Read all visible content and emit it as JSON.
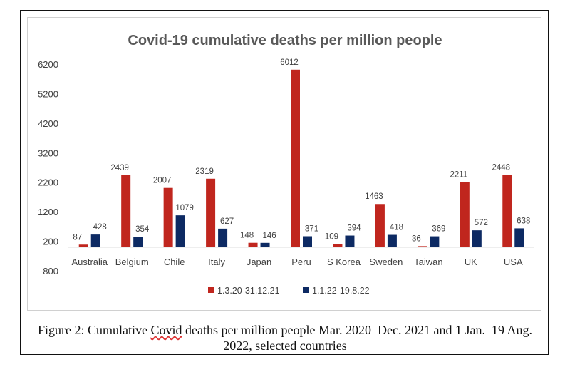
{
  "chart_data": {
    "type": "bar",
    "title": "Covid-19 cumulative deaths per million people",
    "categories": [
      "Australia",
      "Belgium",
      "Chile",
      "Italy",
      "Japan",
      "Peru",
      "S Korea",
      "Sweden",
      "Taiwan",
      "UK",
      "USA"
    ],
    "series": [
      {
        "name": "1.3.20-31.12.21",
        "color": "#c0261e",
        "values": [
          87,
          2439,
          2007,
          2319,
          148,
          6012,
          109,
          1463,
          36,
          2211,
          2448
        ]
      },
      {
        "name": "1.1.22-19.8.22",
        "color": "#0d2a63",
        "values": [
          428,
          354,
          1079,
          627,
          146,
          371,
          394,
          418,
          369,
          572,
          638
        ]
      }
    ],
    "yticks": [
      -800,
      200,
      1200,
      2200,
      3200,
      4200,
      5200,
      6200
    ],
    "ylim": [
      -800,
      6200
    ],
    "grid": false,
    "legend": "bottom"
  },
  "caption": {
    "pre": "Figure 2: Cumulative ",
    "underlined": "Covid",
    "post": " deaths per million people Mar. 2020–Dec. 2021 and 1 Jan.–19 Aug. 2022, selected countries"
  }
}
